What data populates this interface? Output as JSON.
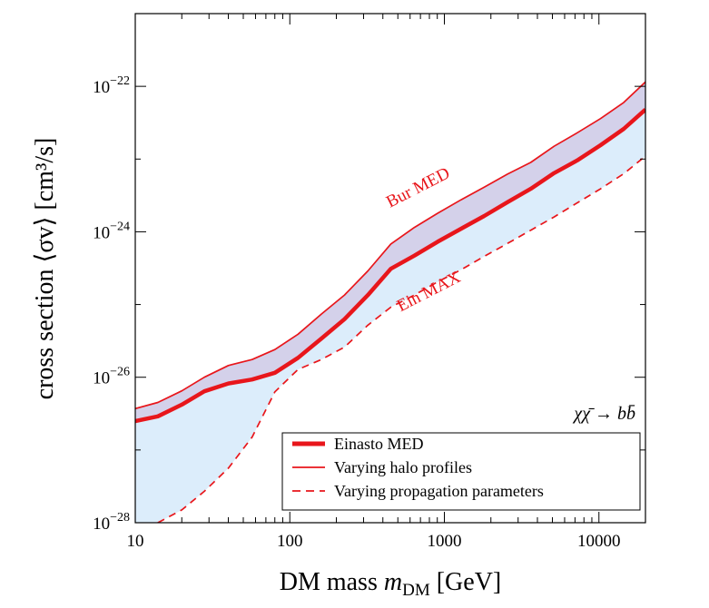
{
  "chart_data": {
    "type": "line",
    "xlabel": "DM mass m",
    "xlabel_sub": "DM",
    "xlabel_unit": "[GeV]",
    "ylabel": "cross section ⟨σv⟩ [cm³/s]",
    "x_scale": "log",
    "y_scale": "log",
    "xlim": [
      10,
      20000
    ],
    "ylim": [
      1e-28,
      1e-21
    ],
    "grid": false,
    "legend_position": "bottom-right",
    "x_ticks": [
      {
        "value": 10,
        "label": "10"
      },
      {
        "value": 100,
        "label": "100"
      },
      {
        "value": 1000,
        "label": "1000"
      },
      {
        "value": 10000,
        "label": "10000"
      }
    ],
    "y_ticks": [
      {
        "value": 1e-28,
        "base": "10",
        "exp": "−28"
      },
      {
        "value": 1e-26,
        "base": "10",
        "exp": "−26"
      },
      {
        "value": 1e-24,
        "base": "10",
        "exp": "−24"
      },
      {
        "value": 1e-22,
        "base": "10",
        "exp": "−22"
      }
    ],
    "channel_label": "χχ̄ → bb̄",
    "annotations": [
      {
        "text": "Bur MED",
        "x": 700,
        "y": 3.5e-24,
        "angle": -27
      },
      {
        "text": "Ein MAX",
        "x": 820,
        "y": 1.3e-25,
        "angle": -27
      }
    ],
    "series": [
      {
        "name": "Einasto MED",
        "style": "thick-solid",
        "x": [
          10,
          14,
          20,
          28,
          40,
          57,
          80,
          113,
          160,
          226,
          320,
          450,
          640,
          905,
          1280,
          1810,
          2560,
          3620,
          5120,
          7240,
          10240,
          14480,
          20000
        ],
        "y": [
          2.5e-27,
          2.9e-27,
          4.2e-27,
          6.4e-27,
          8.2e-27,
          9.3e-27,
          1.15e-26,
          1.85e-26,
          3.4e-26,
          6.3e-26,
          1.35e-25,
          3.1e-25,
          4.7e-25,
          7.3e-25,
          1.1e-24,
          1.65e-24,
          2.55e-24,
          3.9e-24,
          6.4e-24,
          9.6e-24,
          1.55e-23,
          2.6e-23,
          4.8e-23
        ]
      },
      {
        "name": "Varying halo profiles",
        "style": "thin-solid",
        "x": [
          10,
          14,
          20,
          28,
          40,
          57,
          80,
          113,
          160,
          226,
          320,
          450,
          640,
          905,
          1280,
          1810,
          2560,
          3620,
          5120,
          7240,
          10240,
          14480,
          20000
        ],
        "y": [
          3.7e-27,
          4.5e-27,
          6.5e-27,
          1e-26,
          1.45e-26,
          1.75e-26,
          2.4e-26,
          3.9e-26,
          7.4e-26,
          1.35e-25,
          2.9e-25,
          6.8e-25,
          1.15e-24,
          1.8e-24,
          2.75e-24,
          4.1e-24,
          6.2e-24,
          9e-24,
          1.5e-23,
          2.3e-23,
          3.6e-23,
          6e-23,
          1.15e-22
        ]
      },
      {
        "name": "Varying propagation parameters",
        "style": "dashed",
        "x": [
          14,
          20,
          28,
          40,
          57,
          80,
          113,
          160,
          226,
          320,
          450,
          640,
          905,
          1280,
          1810,
          2560,
          3620,
          5120,
          7240,
          10240,
          14480,
          20000
        ],
        "y": [
          1e-28,
          1.5e-28,
          2.7e-28,
          5.6e-28,
          1.5e-27,
          6.3e-27,
          1.28e-26,
          1.75e-26,
          2.6e-26,
          5.2e-26,
          9.2e-26,
          1.35e-25,
          2.05e-25,
          3e-25,
          4.6e-25,
          6.9e-25,
          1.05e-24,
          1.6e-24,
          2.5e-24,
          3.9e-24,
          6.3e-24,
          1.1e-23
        ]
      }
    ],
    "bands": [
      {
        "between": [
          "Varying halo profiles",
          "Einasto MED"
        ],
        "color": "#d4d1ea"
      },
      {
        "between": [
          "Einasto MED",
          "Varying propagation parameters"
        ],
        "color": "#dcedfb"
      }
    ],
    "colors": {
      "line": "#e8161b",
      "upper_band": "#d4d1ea",
      "lower_band": "#dcedfb",
      "axes": "#000000"
    }
  }
}
